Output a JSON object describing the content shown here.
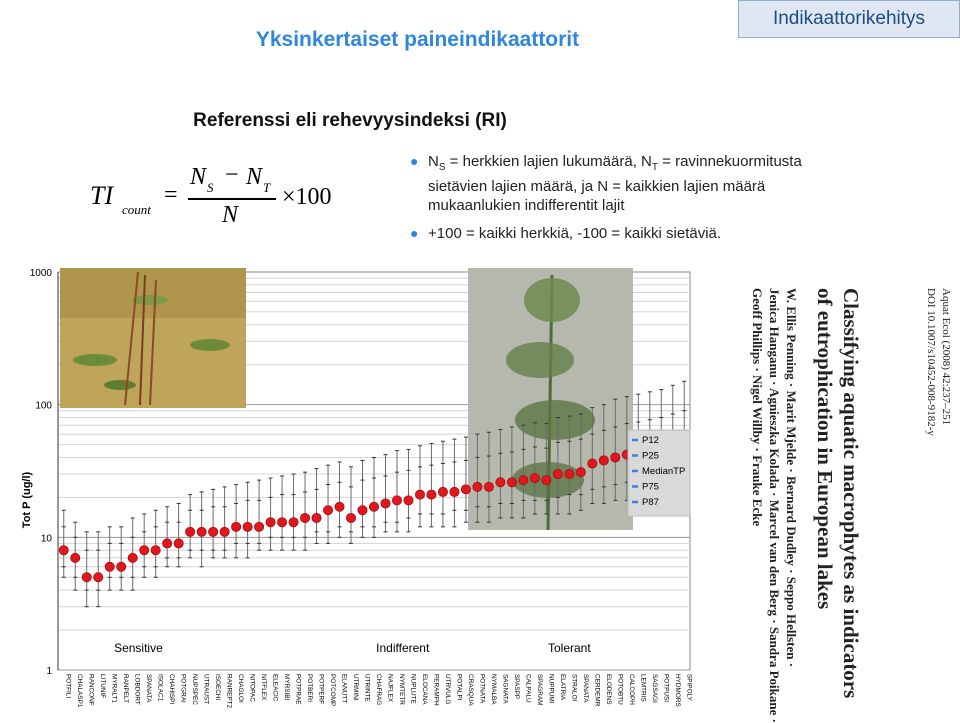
{
  "header": {
    "title": "Yksinkertaiset paineindikaattorit",
    "tab_label": "Indikaattorikehitys"
  },
  "section": {
    "heading": "Referenssi eli rehevyysindeksi (RI)"
  },
  "formula": {
    "lhs_main": "TI",
    "lhs_sub": "count",
    "equals": "=",
    "num_a": "N",
    "num_a_sub": "S",
    "minus": "−",
    "num_b": "N",
    "num_b_sub": "T",
    "denominator": "N",
    "times": "×100"
  },
  "bullets": {
    "b1_line1": "N",
    "b1_line1_sub": "S",
    "b1_line1_rest": " = herkkien lajien lukumäärä, N",
    "b1_line1_sub2": "T",
    "b1_line1_end": " = ravinnekuormitusta",
    "b1_line2": "sietävien lajien määrä, ja  N = kaikkien lajien määrä",
    "b1_line3": "mukaanlukien indifferentit lajit",
    "b2": "+100 = kaikki herkkiä, -100 = kaikki sietäviä."
  },
  "paper": {
    "journal": "Aquat Ecol (2008) 42:237–251",
    "doi": "DOI 10.1007/s10452-008-9182-y",
    "title_line1": "Classifying aquatic macrophytes as indicators",
    "title_line2": "of eutrophication in European lakes",
    "authors_line1": "W. Ellis Penning · Marit Mjelde · Bernard Dudley · Seppo Hellsten ·",
    "authors_line2": "Jenica Hanganu · Agnieszka Kolada · Marcel van den Berg · Sandra Poikane ·",
    "authors_line3": "Geoff Phillips · Nigel Willby · Frauke Ecke"
  },
  "colors": {
    "accent": "#2f86df",
    "marker": "#e0181e",
    "marker_edge": "#a50d10",
    "legend_box": "#d9d9d9"
  },
  "chart_data": {
    "type": "scatter",
    "ylabel": "Tot P (ug/l)",
    "yscale": "log",
    "ylim": [
      1,
      1000
    ],
    "yticks": [
      "1",
      "10",
      "100",
      "1000"
    ],
    "grid": true,
    "legend": [
      "P12",
      "P25",
      "MedianTP",
      "P75",
      "P87"
    ],
    "legend_position": "right",
    "group_labels": [
      "Sensitive",
      "Indifferent",
      "Tolerant"
    ],
    "categories": [
      "POTFILI",
      "CHALASP1",
      "RANCONF",
      "LITUNIF",
      "MYRALT1",
      "RANPELT",
      "LOBDORT",
      "SPANATA",
      "ISOLAC1",
      "CHAHISPI",
      "POTGRAI",
      "NUPSPEC",
      "UTRAUST",
      "ISOECHI",
      "RANREPT2",
      "CHAGLOI",
      "NITOPAC",
      "NITFLEX",
      "ELEACIC",
      "MYRSIBI",
      "POTPRAE",
      "POTBERI",
      "POTPERF",
      "POTCOMP",
      "ELANUTT",
      "UTRMINI",
      "UTRINTE",
      "CHAFRAG",
      "NAJFLEX",
      "NYMTETR",
      "NUPLUTE",
      "ELOCANA",
      "PERAMPH",
      "UTRVULG",
      "POTALPI",
      "CRASQUA",
      "POTNATA",
      "NYMALBA",
      "SAGNATA",
      "SPASPP",
      "CALPALU",
      "SPAGRAM",
      "NUPPUMI",
      "ELATRIA",
      "STRALOI",
      "SPANATA",
      "CERDEMR",
      "ELODENS",
      "POTOBTU",
      "CALCOPH",
      "LEMTRIS",
      "SAGSAGI",
      "POTPUSI",
      "HYDMORS",
      "SPIPOLY"
    ],
    "series": [
      {
        "name": "MedianTP",
        "values": [
          8,
          7,
          5,
          5,
          6,
          6,
          7,
          8,
          8,
          9,
          9,
          11,
          11,
          11,
          11,
          12,
          12,
          12,
          13,
          13,
          13,
          14,
          14,
          16,
          17,
          14,
          16,
          17,
          18,
          19,
          19,
          21,
          21,
          22,
          22,
          23,
          24,
          24,
          26,
          26,
          27,
          28,
          27,
          30,
          30,
          31,
          36,
          38,
          40,
          42,
          42,
          43,
          45,
          48,
          50
        ]
      },
      {
        "name": "P12",
        "values": [
          5,
          4,
          3,
          3,
          4,
          4,
          4,
          5,
          5,
          6,
          6,
          7,
          6,
          7,
          7,
          7,
          7,
          8,
          8,
          8,
          8,
          8,
          9,
          9,
          10,
          9,
          10,
          10,
          11,
          11,
          11,
          12,
          12,
          12,
          12,
          13,
          13,
          13,
          14,
          14,
          14,
          15,
          15,
          15,
          15,
          16,
          18,
          18,
          19,
          19,
          20,
          20,
          21,
          21,
          22
        ]
      },
      {
        "name": "P25",
        "values": [
          6,
          5,
          4,
          4,
          5,
          5,
          5,
          6,
          6,
          7,
          7,
          8,
          8,
          8,
          8,
          9,
          9,
          9,
          10,
          10,
          10,
          10,
          11,
          11,
          12,
          11,
          12,
          12,
          13,
          13,
          14,
          15,
          15,
          15,
          16,
          16,
          17,
          17,
          18,
          18,
          19,
          19,
          19,
          20,
          21,
          21,
          23,
          24,
          25,
          26,
          27,
          27,
          28,
          29,
          30
        ]
      },
      {
        "name": "P75",
        "values": [
          12,
          10,
          8,
          8,
          9,
          9,
          10,
          11,
          12,
          13,
          13,
          16,
          16,
          17,
          17,
          18,
          19,
          19,
          20,
          21,
          21,
          22,
          23,
          25,
          26,
          24,
          27,
          28,
          29,
          31,
          32,
          34,
          35,
          36,
          37,
          38,
          40,
          41,
          43,
          44,
          46,
          48,
          47,
          52,
          53,
          55,
          60,
          64,
          68,
          72,
          74,
          77,
          80,
          85,
          90
        ]
      },
      {
        "name": "P87",
        "values": [
          16,
          13,
          11,
          11,
          12,
          12,
          14,
          15,
          16,
          17,
          18,
          21,
          22,
          23,
          24,
          25,
          26,
          27,
          28,
          29,
          30,
          31,
          33,
          35,
          37,
          34,
          38,
          40,
          42,
          45,
          46,
          49,
          51,
          53,
          55,
          57,
          60,
          62,
          65,
          68,
          70,
          73,
          72,
          80,
          82,
          85,
          95,
          100,
          110,
          115,
          120,
          125,
          130,
          140,
          150
        ]
      }
    ]
  }
}
